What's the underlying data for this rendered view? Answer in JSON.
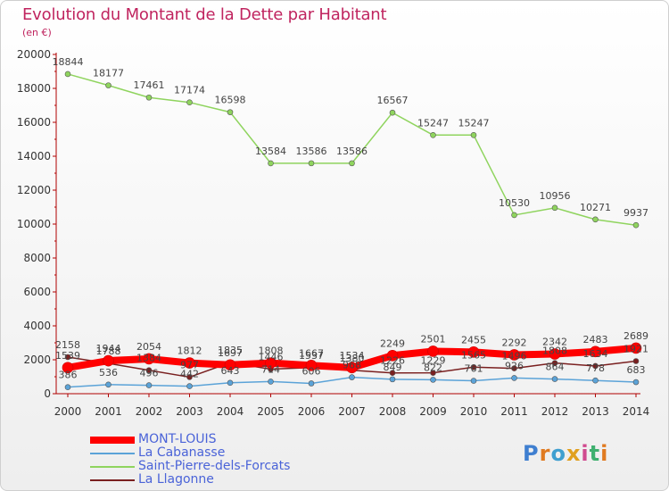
{
  "chart_data": {
    "type": "line",
    "title": "Evolution du Montant de la Dette par Habitant",
    "subtitle": "(en €)",
    "x": [
      "2000",
      "2001",
      "2002",
      "2003",
      "2004",
      "2005",
      "2006",
      "2007",
      "2008",
      "2009",
      "2010",
      "2011",
      "2012",
      "2013",
      "2014"
    ],
    "ylim": [
      0,
      20000
    ],
    "yticks": [
      0,
      2000,
      4000,
      6000,
      8000,
      10000,
      12000,
      14000,
      16000,
      18000,
      20000
    ],
    "grid": false,
    "legend_position": "bottom-left",
    "series": [
      {
        "name": "MONT-LOUIS",
        "color": "#ff0000",
        "values": [
          1539,
          1944,
          2054,
          1812,
          1697,
          1808,
          1667,
          1534,
          2249,
          2501,
          2455,
          2292,
          2342,
          2483,
          2689
        ],
        "labels": [
          "1539",
          "1944",
          "2054",
          "1812",
          "1697",
          "1808",
          "1667",
          "1534",
          "2249",
          "2501",
          "2455",
          "2292",
          "2342",
          "2483",
          "2689"
        ]
      },
      {
        "name": "La Cabanasse",
        "color": "#5ba3d8",
        "values": [
          386,
          536,
          496,
          442,
          643,
          714,
          606,
          968,
          849,
          822,
          761,
          926,
          864,
          778,
          683
        ],
        "labels": [
          "386",
          "536",
          "496",
          "442",
          "643",
          "714",
          "606",
          "968",
          "849",
          "822",
          "761",
          "926",
          "864",
          "778",
          "683"
        ]
      },
      {
        "name": "Saint-Pierre-dels-Forcats",
        "color": "#8fd45e",
        "values": [
          18844,
          18177,
          17461,
          17174,
          16598,
          13584,
          13586,
          13586,
          16567,
          15247,
          15247,
          10530,
          10956,
          10271,
          9937
        ],
        "labels": [
          "18844",
          "18177",
          "17461",
          "17174",
          "16598",
          "13584",
          "13586",
          "13586",
          "16567",
          "15247",
          "15247",
          "10530",
          "10956",
          "10271",
          "9937"
        ]
      },
      {
        "name": "La Llagonne",
        "color": "#7a2020",
        "values": [
          2158,
          1788,
          1384,
          977,
          1835,
          1446,
          1537,
          1380,
          1226,
          1229,
          1565,
          1496,
          1808,
          1634,
          1921
        ],
        "labels": [
          "2158",
          "1788",
          "1384",
          "977",
          "1835",
          "1446",
          "1537",
          "1380",
          "1226",
          "1229",
          "1565",
          "1496",
          "1808",
          "1634",
          "1921"
        ]
      }
    ]
  },
  "logo": {
    "text": "Proxiti"
  }
}
